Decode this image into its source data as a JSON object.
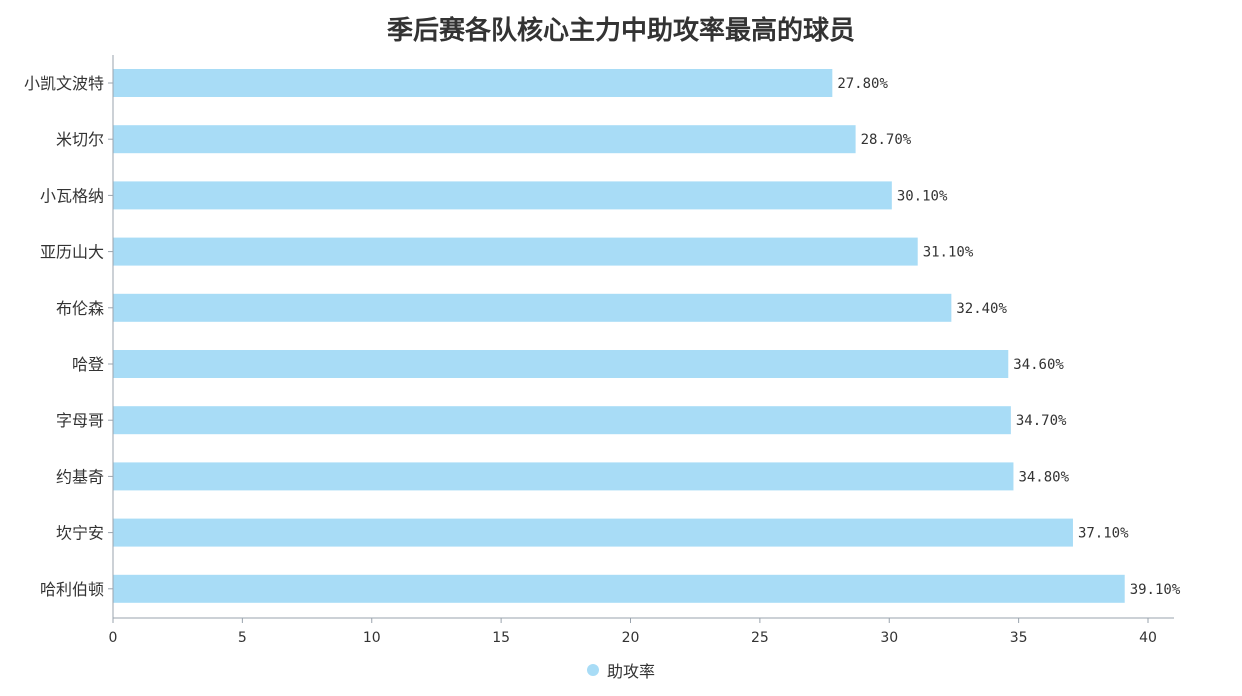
{
  "chart_data": {
    "type": "bar",
    "orientation": "horizontal",
    "title": "季后赛各队核心主力中助攻率最高的球员",
    "categories": [
      "小凯文波特",
      "米切尔",
      "小瓦格纳",
      "亚历山大",
      "布伦森",
      "哈登",
      "字母哥",
      "约基奇",
      "坎宁安",
      "哈利伯顿"
    ],
    "series": [
      {
        "name": "助攻率",
        "values": [
          27.8,
          28.7,
          30.1,
          31.1,
          32.4,
          34.6,
          34.7,
          34.8,
          37.1,
          39.1
        ],
        "labels": [
          "27.80%",
          "28.70%",
          "30.10%",
          "31.10%",
          "32.40%",
          "34.60%",
          "34.70%",
          "34.80%",
          "37.10%",
          "39.10%"
        ]
      }
    ],
    "xlim": [
      0,
      40
    ],
    "x_ticks": [
      "0",
      "5",
      "10",
      "15",
      "20",
      "25",
      "30",
      "35",
      "40"
    ],
    "grid": false,
    "legend_position": "bottom"
  },
  "colors": {
    "bar": "#a8dcf6",
    "axis": "#9aa3ad",
    "text": "#333333"
  }
}
